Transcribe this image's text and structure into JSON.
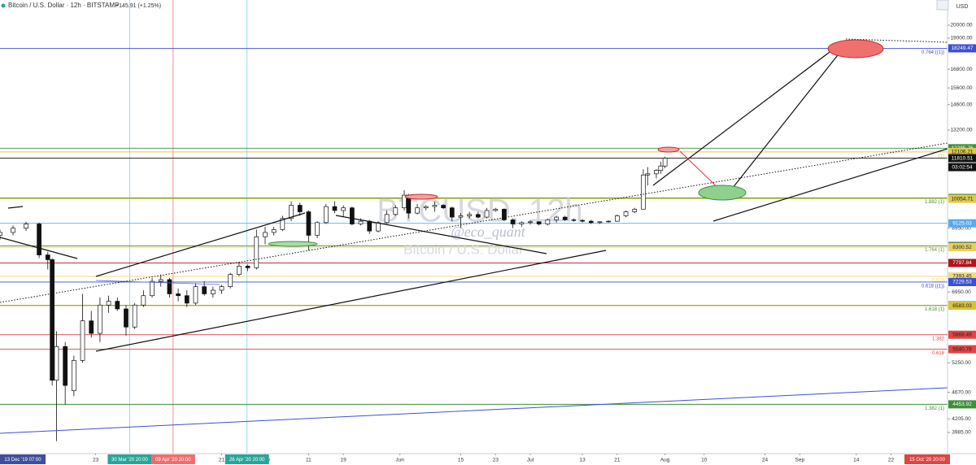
{
  "chart_data": {
    "type": "candlestick",
    "title": "Bitcoin / U.S. Dollar · 12h · BITSTAMP",
    "change": "+145.91 (+1.25%)",
    "currency": "USD",
    "countdown": "03:02:54",
    "watermark": {
      "symbol": "BTCUSD, 12h",
      "name": "Bitcoin / U.S. Dollar",
      "author": "@eco_quant"
    },
    "log_scale": true,
    "ylim": [
      3664,
      22100
    ],
    "yticks": [
      {
        "value": 20000,
        "label": "20000.00"
      },
      {
        "value": 19000,
        "label": "19000.00"
      },
      {
        "value": 16800,
        "label": "16800.00"
      },
      {
        "value": 15600,
        "label": "15600.00"
      },
      {
        "value": 14600,
        "label": "14600.00"
      },
      {
        "value": 13200,
        "label": "13200.00"
      },
      {
        "value": 8950,
        "label": "8950.00"
      },
      {
        "value": 6950,
        "label": "6950.00"
      },
      {
        "value": 5250,
        "label": "5250.00"
      },
      {
        "value": 4670,
        "label": "4670.00"
      },
      {
        "value": 4205,
        "label": "4205.00"
      },
      {
        "value": 3985,
        "label": "3985.00"
      }
    ],
    "xlim": [
      60,
      278
    ],
    "xticks": [
      {
        "value": 82,
        "label": "23"
      },
      {
        "value": 111,
        "label": "21"
      },
      {
        "value": 121,
        "label": "May"
      },
      {
        "value": 131,
        "label": "11"
      },
      {
        "value": 139,
        "label": "19"
      },
      {
        "value": 152,
        "label": "Jun"
      },
      {
        "value": 166,
        "label": "15"
      },
      {
        "value": 174,
        "label": "23"
      },
      {
        "value": 182,
        "label": "Jul"
      },
      {
        "value": 194,
        "label": "13"
      },
      {
        "value": 202,
        "label": "21"
      },
      {
        "value": 213,
        "label": "Aug"
      },
      {
        "value": 222,
        "label": "10"
      },
      {
        "value": 236,
        "label": "24"
      },
      {
        "value": 244,
        "label": "Sep"
      },
      {
        "value": 257,
        "label": "14"
      },
      {
        "value": 265,
        "label": "22"
      }
    ],
    "x_markers": [
      {
        "value": 89.83,
        "label": "30 Mar '20  20:00",
        "color": "#7fd3f0"
      },
      {
        "value": 99.83,
        "label": "09 Apr '20  20:00",
        "color": "#f27474"
      },
      {
        "value": 116.83,
        "label": "26 Apr '20  20:00",
        "color": "#7fd3f0"
      }
    ],
    "range_labels": [
      "13 Dec '19  07:00",
      "15 Oct '20  20:00"
    ],
    "levels": [
      {
        "value": 18249.47,
        "color": "#3d4fd6",
        "fib": "0.764 ((1))"
      },
      {
        "value": 12285.76,
        "color": "#3f8f3a"
      },
      {
        "value": 12106.21,
        "color": "#e0c84a",
        "fib": "(1)"
      },
      {
        "value": 11810.51,
        "color": "#111111"
      },
      {
        "value": 10089.43,
        "color": "#3f8f3a",
        "fib": "1.882 (1)"
      },
      {
        "value": 10054.71,
        "color": "#e0c84a"
      },
      {
        "value": 9125.03,
        "color": "#5aa9ee"
      },
      {
        "value": 8346.12,
        "color": "#6f8f5a",
        "fib": "1.764 (1)"
      },
      {
        "value": 8300.52,
        "color": "#e8d060"
      },
      {
        "value": 7797.84,
        "color": "#b3141b"
      },
      {
        "value": 7393.45,
        "color": "#f0dc80",
        "fib": "0.618"
      },
      {
        "value": 7229.53,
        "color": "#3d4fd6",
        "fib": "0.618 ((1))"
      },
      {
        "value": {
          "value": 6593.8,
          "label": "6593.80"
        },
        "color": "#3f8f3a",
        "fib": "1.618 (1)"
      },
      {
        "value": 6583.03,
        "color": "#d9c23c"
      },
      {
        "value": 5868.49,
        "color": "#e04444",
        "fib": "1.382"
      },
      {
        "value": 5540.78,
        "color": "#e04444",
        "fib": "0.618"
      },
      {
        "value": 4453.92,
        "color": "#3f8f3a",
        "fib": "1.382 (1)"
      }
    ],
    "x": [
      60,
      63,
      66,
      69,
      71,
      72,
      73,
      75,
      77,
      79,
      81,
      83,
      85,
      87,
      89,
      91,
      93,
      95,
      97,
      99,
      101,
      103,
      105,
      107,
      109,
      111,
      113,
      115,
      117,
      119,
      121,
      123,
      125,
      127,
      129,
      131,
      133,
      135,
      137,
      139,
      141,
      143,
      145,
      147,
      149,
      151,
      153,
      154,
      156,
      158,
      160,
      162,
      164,
      166,
      168,
      170,
      172,
      174,
      176,
      178,
      180,
      182,
      184,
      186,
      188,
      190,
      192,
      194,
      196,
      198,
      200,
      202,
      204,
      206,
      208,
      209,
      211,
      212,
      213
    ],
    "open": [
      8700,
      8800,
      8950,
      9100,
      8050,
      7900,
      4900,
      5600,
      4700,
      5300,
      6200,
      5900,
      6600,
      6700,
      6500,
      6050,
      6600,
      6850,
      7250,
      7300,
      6900,
      6850,
      6650,
      7100,
      6900,
      7000,
      7100,
      7450,
      7700,
      7650,
      8650,
      8800,
      8900,
      9300,
      9800,
      9550,
      8700,
      9150,
      9750,
      9600,
      9700,
      9100,
      9200,
      8850,
      9150,
      9450,
      9700,
      10200,
      9500,
      9700,
      9750,
      9800,
      9700,
      9350,
      9400,
      9450,
      9350,
      9600,
      9650,
      9250,
      9100,
      9150,
      9180,
      9100,
      9250,
      9350,
      9250,
      9230,
      9200,
      9150,
      9180,
      9200,
      9400,
      9550,
      9650,
      11050,
      11100,
      11250,
      11450
    ],
    "high": [
      8900,
      9050,
      9180,
      9150,
      8150,
      7950,
      5950,
      5700,
      5400,
      6900,
      6450,
      6800,
      6850,
      6800,
      6600,
      6650,
      7000,
      7350,
      7450,
      7350,
      7050,
      7000,
      7200,
      7250,
      7100,
      7150,
      7500,
      7800,
      7750,
      8900,
      9000,
      9000,
      9400,
      9950,
      9900,
      9600,
      9200,
      9850,
      9950,
      9800,
      9750,
      9300,
      9250,
      9200,
      9600,
      9800,
      10400,
      10250,
      9850,
      9800,
      9950,
      9850,
      9750,
      9500,
      9550,
      9550,
      9700,
      9700,
      9680,
      9300,
      9200,
      9250,
      9200,
      9300,
      9400,
      9400,
      9300,
      9280,
      9250,
      9200,
      9230,
      9450,
      9600,
      9700,
      11300,
      11400,
      11300,
      11650,
      11880
    ],
    "low": [
      8550,
      8700,
      8850,
      7950,
      7600,
      4800,
      3850,
      4450,
      4600,
      5250,
      5800,
      5700,
      6400,
      6450,
      5850,
      6000,
      6550,
      6800,
      7100,
      6800,
      6700,
      6550,
      6600,
      6850,
      6800,
      6900,
      7050,
      7400,
      7550,
      7600,
      8400,
      8700,
      8850,
      9200,
      9400,
      8200,
      8600,
      9100,
      9500,
      9350,
      9050,
      9050,
      8750,
      8800,
      9100,
      9400,
      9600,
      9300,
      9450,
      9600,
      9550,
      9650,
      9200,
      8950,
      9300,
      9300,
      9300,
      9550,
      9200,
      8950,
      9000,
      9080,
      9050,
      9050,
      9150,
      9200,
      9180,
      9150,
      9100,
      9100,
      9150,
      9180,
      9350,
      9500,
      9650,
      10600,
      10900,
      11100,
      11350
    ],
    "close": [
      8800,
      8950,
      9100,
      8050,
      7900,
      4900,
      5600,
      4800,
      5300,
      6200,
      5900,
      6600,
      6700,
      6500,
      6050,
      6600,
      6850,
      7250,
      7300,
      6900,
      6850,
      6650,
      7100,
      6900,
      7000,
      7100,
      7450,
      7700,
      7650,
      8650,
      8800,
      8900,
      9300,
      9800,
      9550,
      8700,
      9150,
      9750,
      9600,
      9700,
      9100,
      9200,
      8850,
      9150,
      9450,
      9700,
      10200,
      9500,
      9700,
      9750,
      9800,
      9700,
      9350,
      9400,
      9450,
      9350,
      9600,
      9650,
      9250,
      9100,
      9150,
      9180,
      9100,
      9250,
      9350,
      9250,
      9230,
      9200,
      9150,
      9180,
      9200,
      9400,
      9550,
      9650,
      11050,
      11100,
      11250,
      11450,
      11810
    ]
  }
}
